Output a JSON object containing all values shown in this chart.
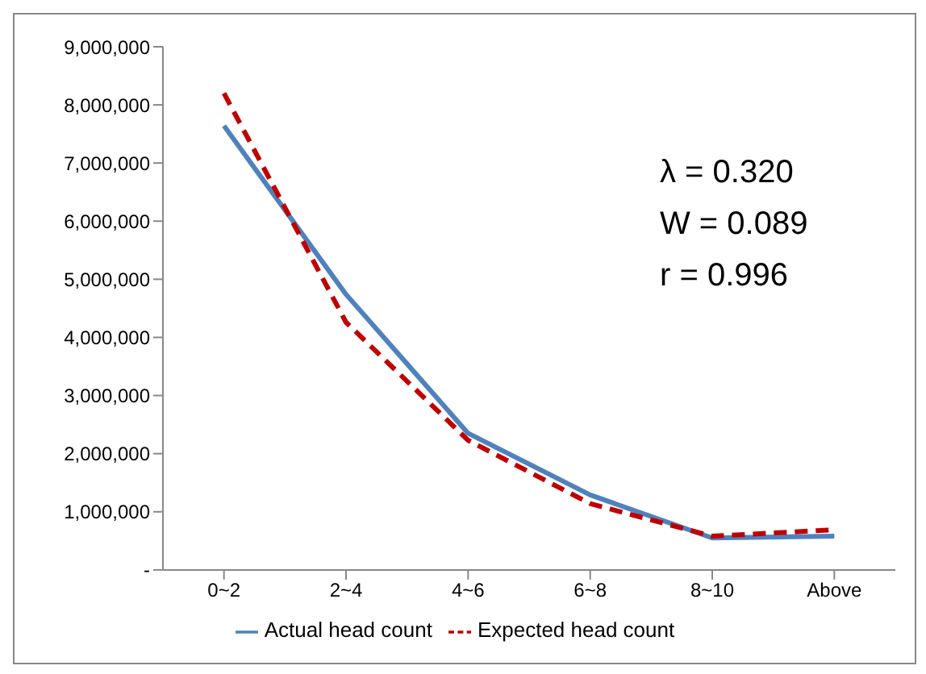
{
  "chart_data": {
    "type": "line",
    "categories": [
      "0~2",
      "2~4",
      "4~6",
      "6~8",
      "8~10",
      "Above"
    ],
    "series": [
      {
        "name": "Actual head count",
        "color": "#4f81bd",
        "values": [
          7640000,
          4740000,
          2350000,
          1290000,
          550000,
          580000
        ],
        "line_style": "solid"
      },
      {
        "name": "Expected head count",
        "color": "#c00000",
        "values": [
          8200000,
          4260000,
          2230000,
          1140000,
          580000,
          690000
        ],
        "line_style": "dashed"
      }
    ],
    "ylim": [
      0,
      9000000
    ],
    "yticks": [
      {
        "value": 0,
        "label": "-"
      },
      {
        "value": 1000000,
        "label": "1,000,000"
      },
      {
        "value": 2000000,
        "label": "2,000,000"
      },
      {
        "value": 3000000,
        "label": "3,000,000"
      },
      {
        "value": 4000000,
        "label": "4,000,000"
      },
      {
        "value": 5000000,
        "label": "5,000,000"
      },
      {
        "value": 6000000,
        "label": "6,000,000"
      },
      {
        "value": 7000000,
        "label": "7,000,000"
      },
      {
        "value": 8000000,
        "label": "8,000,000"
      },
      {
        "value": 9000000,
        "label": "9,000,000"
      }
    ],
    "annotations": [
      "λ = 0.320",
      "W = 0.089",
      "r = 0.996"
    ],
    "legend": "bottom",
    "marker": "none",
    "grid": false
  }
}
